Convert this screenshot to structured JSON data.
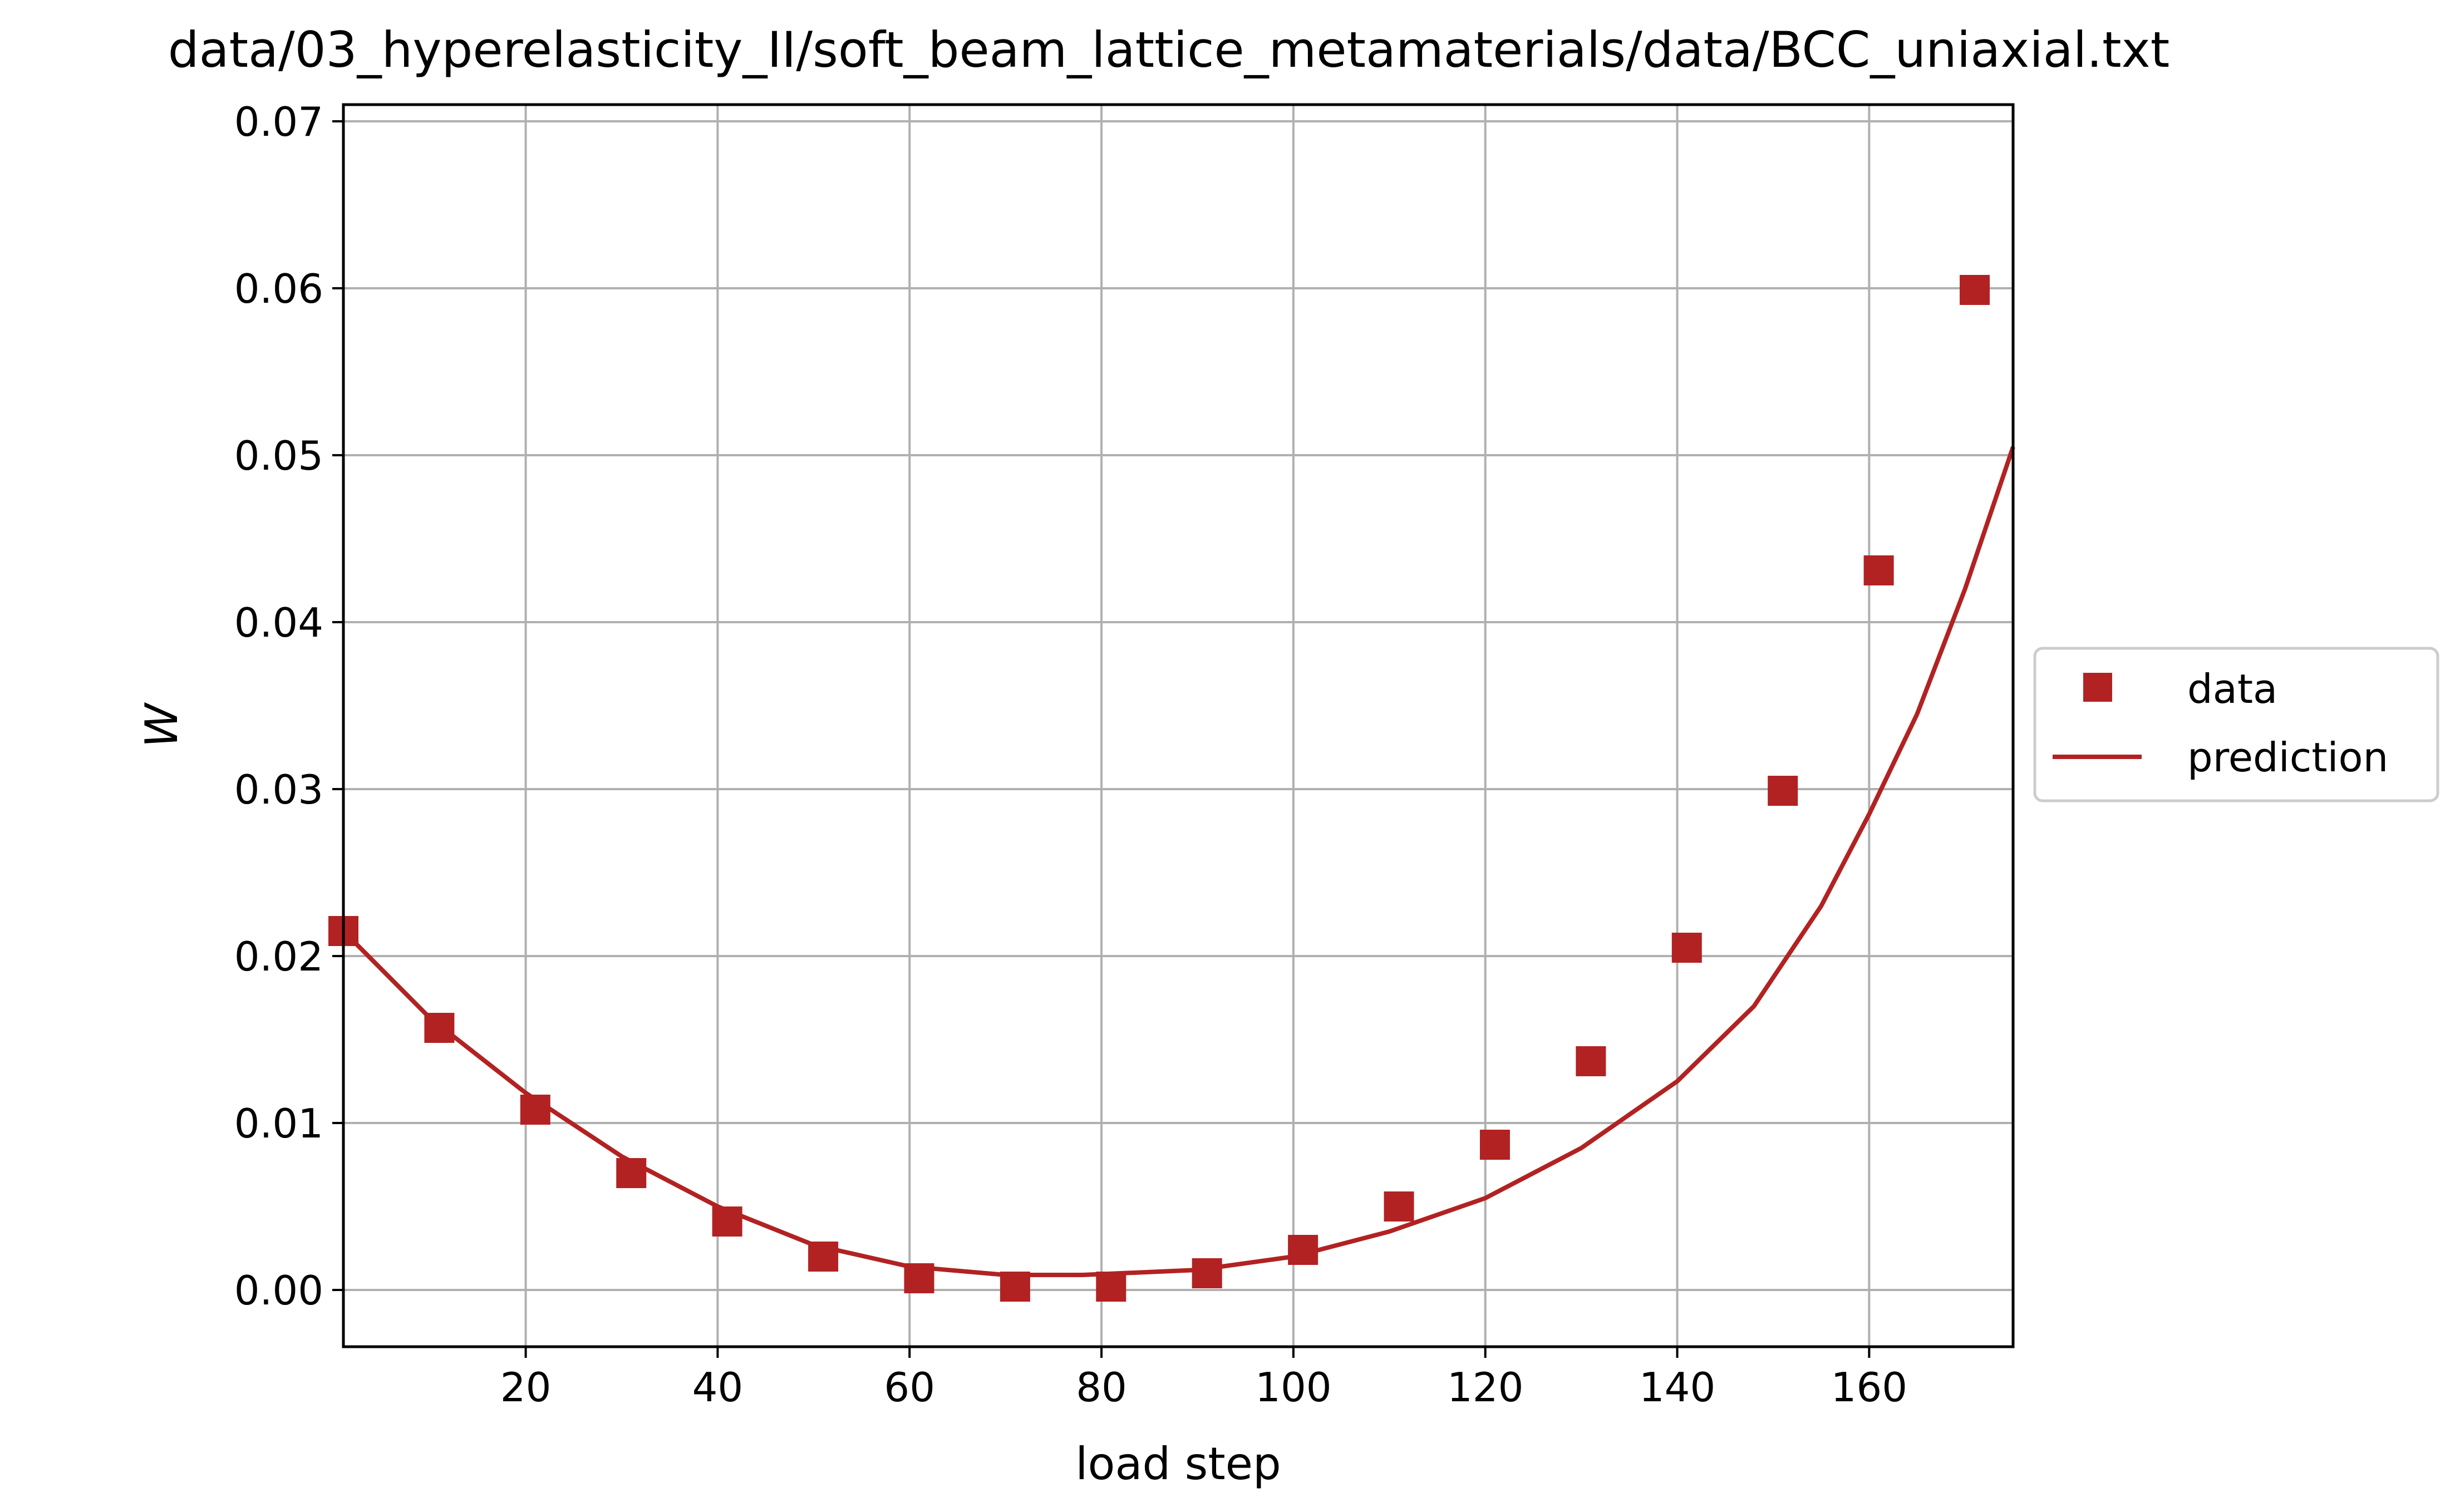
{
  "chart_data": {
    "type": "scatter",
    "title": "data/03_hyperelasticity_II/soft_beam_lattice_metamaterials/data/BCC_uniaxial.txt",
    "xlabel": "load step",
    "ylabel": "W",
    "xlim": [
      1,
      175
    ],
    "ylim": [
      -0.0034,
      0.071
    ],
    "xticks": [
      20,
      40,
      60,
      80,
      100,
      120,
      140,
      160
    ],
    "xtick_labels": [
      "20",
      "40",
      "60",
      "80",
      "100",
      "120",
      "140",
      "160"
    ],
    "yticks": [
      0.0,
      0.01,
      0.02,
      0.03,
      0.04,
      0.05,
      0.06,
      0.07
    ],
    "ytick_labels": [
      "0.00",
      "0.01",
      "0.02",
      "0.03",
      "0.04",
      "0.05",
      "0.06",
      "0.07"
    ],
    "grid": true,
    "legend_position": "right-outside",
    "series": [
      {
        "name": "data",
        "kind": "markers",
        "marker": "square",
        "color": "#b22222",
        "x": [
          1,
          11,
          21,
          31,
          41,
          51,
          61,
          71,
          81,
          91,
          101,
          111,
          121,
          131,
          141,
          151,
          161,
          171
        ],
        "y": [
          0.0215,
          0.0157,
          0.0108,
          0.007,
          0.0041,
          0.002,
          0.0007,
          0.0002,
          0.0002,
          0.001,
          0.0024,
          0.005,
          0.0087,
          0.0137,
          0.0205,
          0.0299,
          0.0431,
          0.0599
        ]
      },
      {
        "name": "prediction",
        "kind": "line",
        "color": "#b22222",
        "x": [
          1,
          10,
          20,
          30,
          40,
          50,
          60,
          70,
          78,
          90,
          100,
          110,
          120,
          130,
          140,
          148,
          155,
          160,
          165,
          170,
          175
        ],
        "y": [
          0.0215,
          0.0163,
          0.0118,
          0.008,
          0.005,
          0.0027,
          0.0014,
          0.0009,
          0.0009,
          0.0012,
          0.002,
          0.0035,
          0.0055,
          0.0085,
          0.0125,
          0.017,
          0.023,
          0.0285,
          0.0345,
          0.042,
          0.0505
        ]
      }
    ]
  }
}
